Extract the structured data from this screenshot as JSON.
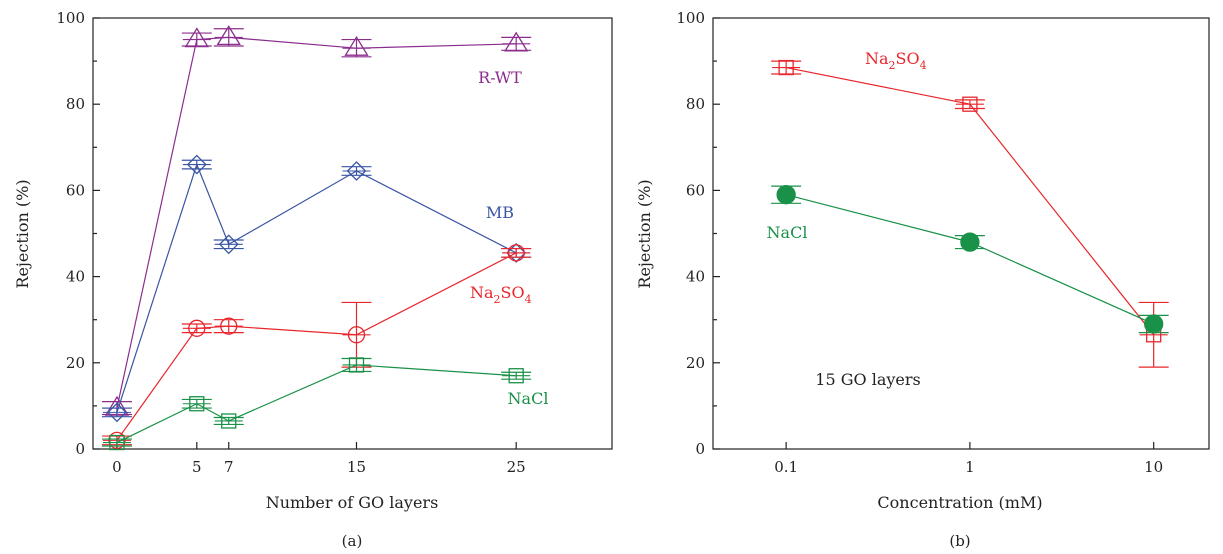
{
  "chart_data": [
    {
      "type": "line",
      "panel_label": "(a)",
      "xlabel": "Number of GO layers",
      "ylabel": "Rejection (%)",
      "xlim": [
        -1.5,
        31
      ],
      "ylim": [
        0,
        100
      ],
      "x_ticks": [
        0,
        5,
        7,
        15,
        25
      ],
      "y_ticks": [
        0,
        20,
        40,
        60,
        80,
        100
      ],
      "grid": false,
      "legend": "none",
      "series": [
        {
          "name": "R-WT",
          "color": "#8B2D8E",
          "marker": "triangle",
          "x": [
            0,
            5,
            7,
            15,
            25
          ],
          "y": [
            9.5,
            95,
            95.5,
            93,
            94
          ],
          "err": [
            1.5,
            1.5,
            2.0,
            2.0,
            1.5
          ]
        },
        {
          "name": "MB",
          "color": "#3A55A4",
          "marker": "diamond",
          "x": [
            0,
            5,
            7,
            15,
            25
          ],
          "y": [
            8.5,
            66,
            47.5,
            64.5,
            45.5
          ],
          "err": [
            1.0,
            1.0,
            1.0,
            1.0,
            1.0
          ]
        },
        {
          "name": "Na2SO4",
          "color": "#E8262B",
          "marker": "circle",
          "x": [
            0,
            5,
            7,
            15,
            25
          ],
          "y": [
            2,
            28,
            28.5,
            26.5,
            45.5
          ],
          "err": [
            1.0,
            1.0,
            1.5,
            7.5,
            1.0
          ]
        },
        {
          "name": "NaCl",
          "color": "#1A9148",
          "marker": "square",
          "x": [
            0,
            5,
            7,
            15,
            25
          ],
          "y": [
            1.5,
            10.5,
            6.5,
            19.5,
            17
          ],
          "err": [
            0.8,
            1.0,
            0.8,
            1.5,
            0.8
          ]
        }
      ],
      "annotations": [
        {
          "series": "R-WT",
          "text": "R-WT"
        },
        {
          "series": "MB",
          "text": "MB"
        },
        {
          "series": "Na2SO4",
          "text": "Na2SO4"
        },
        {
          "series": "NaCl",
          "text": "NaCl"
        }
      ]
    },
    {
      "type": "line",
      "panel_label": "(b)",
      "xlabel": "Concentration (mM)",
      "ylabel": "Rejection (%)",
      "xscale": "log",
      "xlim": [
        0.04,
        20
      ],
      "ylim": [
        0,
        100
      ],
      "x_ticks": [
        0.1,
        1,
        10
      ],
      "x_tick_labels": [
        "0.1",
        "1",
        "10"
      ],
      "y_ticks": [
        0,
        20,
        40,
        60,
        80,
        100
      ],
      "grid": false,
      "legend": "none",
      "series": [
        {
          "name": "Na2SO4",
          "color": "#E8262B",
          "marker": "square",
          "x": [
            0.1,
            1,
            10
          ],
          "y": [
            88.5,
            80,
            26.5
          ],
          "err": [
            1.5,
            1.0,
            7.5
          ]
        },
        {
          "name": "NaCl",
          "color": "#1A9148",
          "marker": "filled-circle",
          "x": [
            0.1,
            1,
            10
          ],
          "y": [
            59,
            48,
            29
          ],
          "err": [
            2.0,
            1.5,
            2.0
          ]
        }
      ],
      "annotations": [
        {
          "series": "Na2SO4",
          "text": "Na2SO4"
        },
        {
          "series": "NaCl",
          "text": "NaCl"
        },
        {
          "series": null,
          "text": "15 GO layers"
        }
      ]
    }
  ]
}
